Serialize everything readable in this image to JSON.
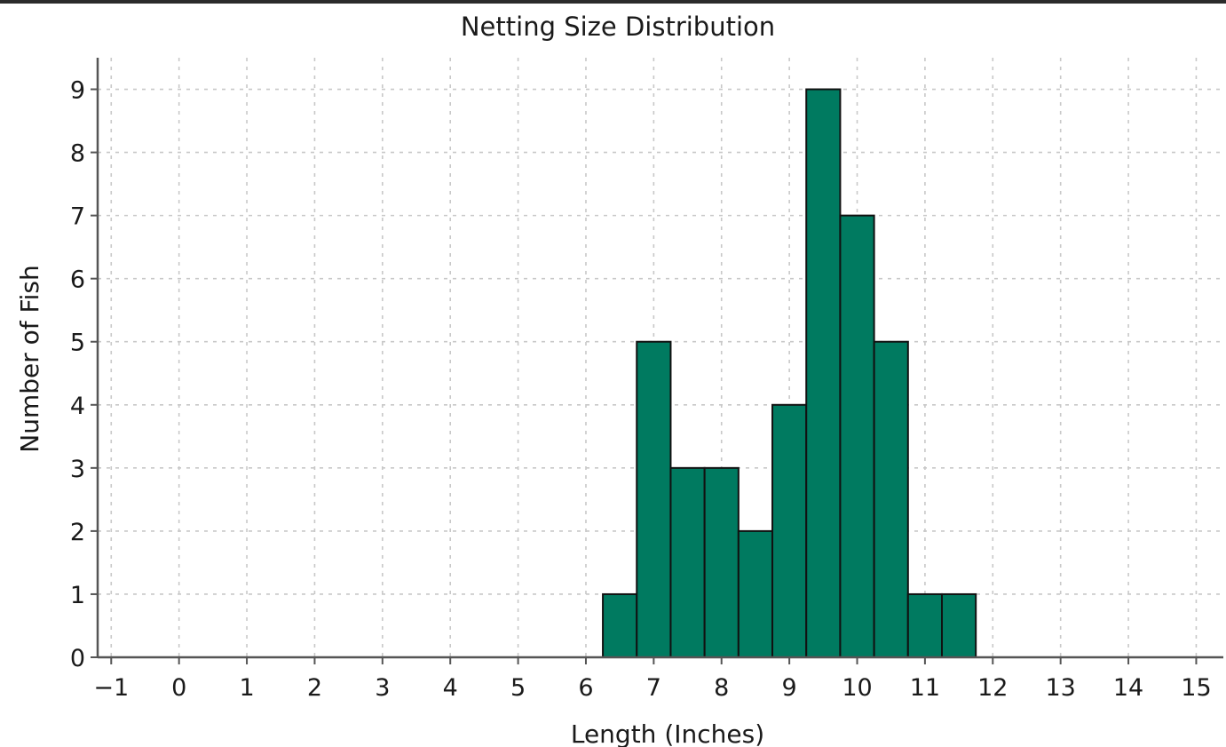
{
  "chart_data": {
    "type": "bar",
    "title": "Netting Size Distribution",
    "xlabel": "Length (Inches)",
    "ylabel": "Number of Fish",
    "xlim": [
      -1.2,
      15.4
    ],
    "ylim": [
      0,
      9.5
    ],
    "x_ticks": [
      -1,
      0,
      1,
      2,
      3,
      4,
      5,
      6,
      7,
      8,
      9,
      10,
      11,
      12,
      13,
      14,
      15
    ],
    "y_ticks": [
      0,
      1,
      2,
      3,
      4,
      5,
      6,
      7,
      8,
      9
    ],
    "x_tick_labels": [
      "−1",
      "0",
      "1",
      "2",
      "3",
      "4",
      "5",
      "6",
      "7",
      "8",
      "9",
      "10",
      "11",
      "12",
      "13",
      "14",
      "15"
    ],
    "y_tick_labels": [
      "0",
      "1",
      "2",
      "3",
      "4",
      "5",
      "6",
      "7",
      "8",
      "9"
    ],
    "bin_width": 0.5,
    "bins": [
      {
        "start": 6.25,
        "end": 6.75,
        "count": 1
      },
      {
        "start": 6.75,
        "end": 7.25,
        "count": 5
      },
      {
        "start": 7.25,
        "end": 7.75,
        "count": 3
      },
      {
        "start": 7.75,
        "end": 8.25,
        "count": 3
      },
      {
        "start": 8.25,
        "end": 8.75,
        "count": 2
      },
      {
        "start": 8.75,
        "end": 9.25,
        "count": 4
      },
      {
        "start": 9.25,
        "end": 9.75,
        "count": 9
      },
      {
        "start": 9.75,
        "end": 10.25,
        "count": 7
      },
      {
        "start": 10.25,
        "end": 10.75,
        "count": 5
      },
      {
        "start": 10.75,
        "end": 11.25,
        "count": 1
      },
      {
        "start": 11.25,
        "end": 11.75,
        "count": 1
      }
    ],
    "bar_color": "#007a60",
    "bar_edge_color": "#111111",
    "grid": true,
    "legend": "none"
  }
}
